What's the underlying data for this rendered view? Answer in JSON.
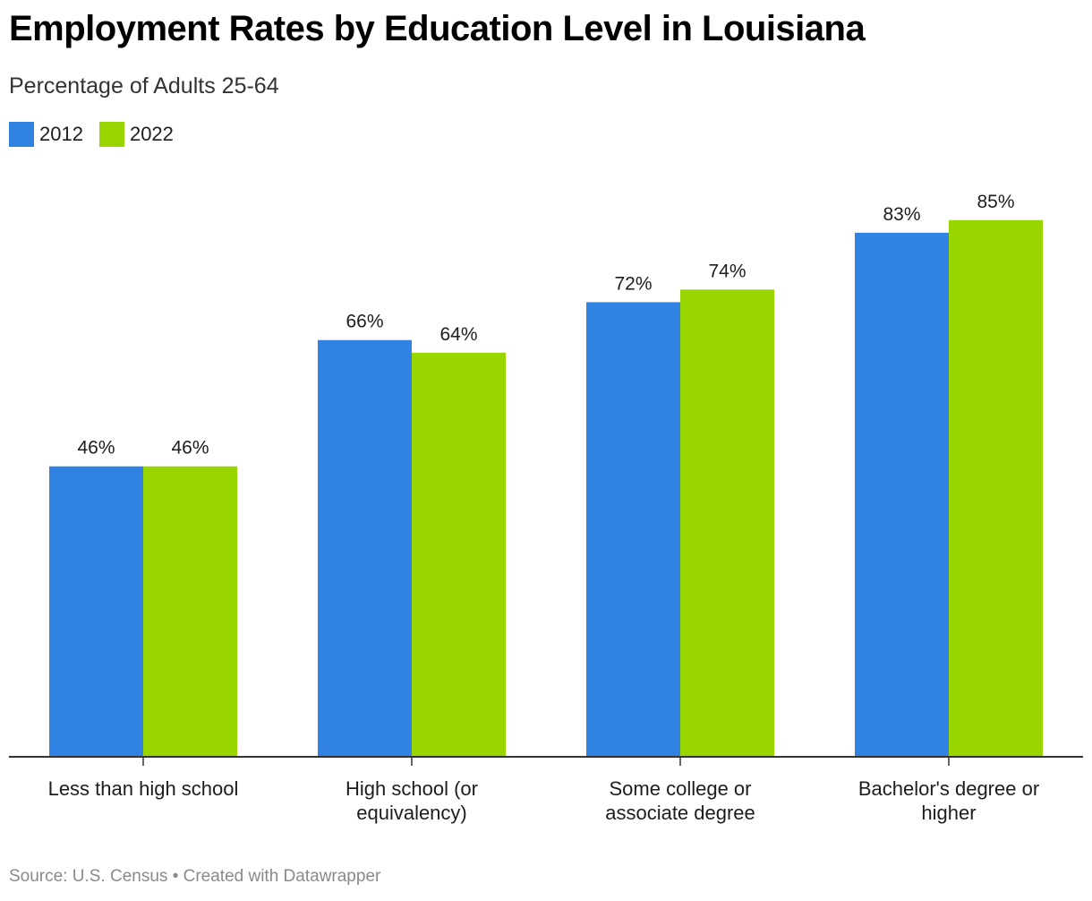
{
  "header": {
    "title": "Employment Rates by Education Level in Louisiana",
    "subtitle": "Percentage of Adults 25-64"
  },
  "footer": {
    "source": "Source: U.S. Census • Created with Datawrapper"
  },
  "chart_data": {
    "type": "bar",
    "title": "Employment Rates by Education Level in Louisiana",
    "subtitle": "Percentage of Adults 25-64",
    "categories": [
      [
        "Less than high school"
      ],
      [
        "High school (or",
        "equivalency)"
      ],
      [
        "Some college or",
        "associate degree"
      ],
      [
        "Bachelor's degree or",
        "higher"
      ]
    ],
    "series": [
      {
        "name": "2012",
        "color": "#3183e3",
        "values": [
          46,
          66,
          72,
          83
        ],
        "labels": [
          "46%",
          "66%",
          "72%",
          "83%"
        ]
      },
      {
        "name": "2022",
        "color": "#99d600",
        "values": [
          46,
          64,
          74,
          85
        ],
        "labels": [
          "46%",
          "64%",
          "74%",
          "85%"
        ]
      }
    ],
    "ylim": [
      0,
      100
    ],
    "grid": false,
    "legend_position": "top-left",
    "xlabel": "",
    "ylabel": ""
  }
}
